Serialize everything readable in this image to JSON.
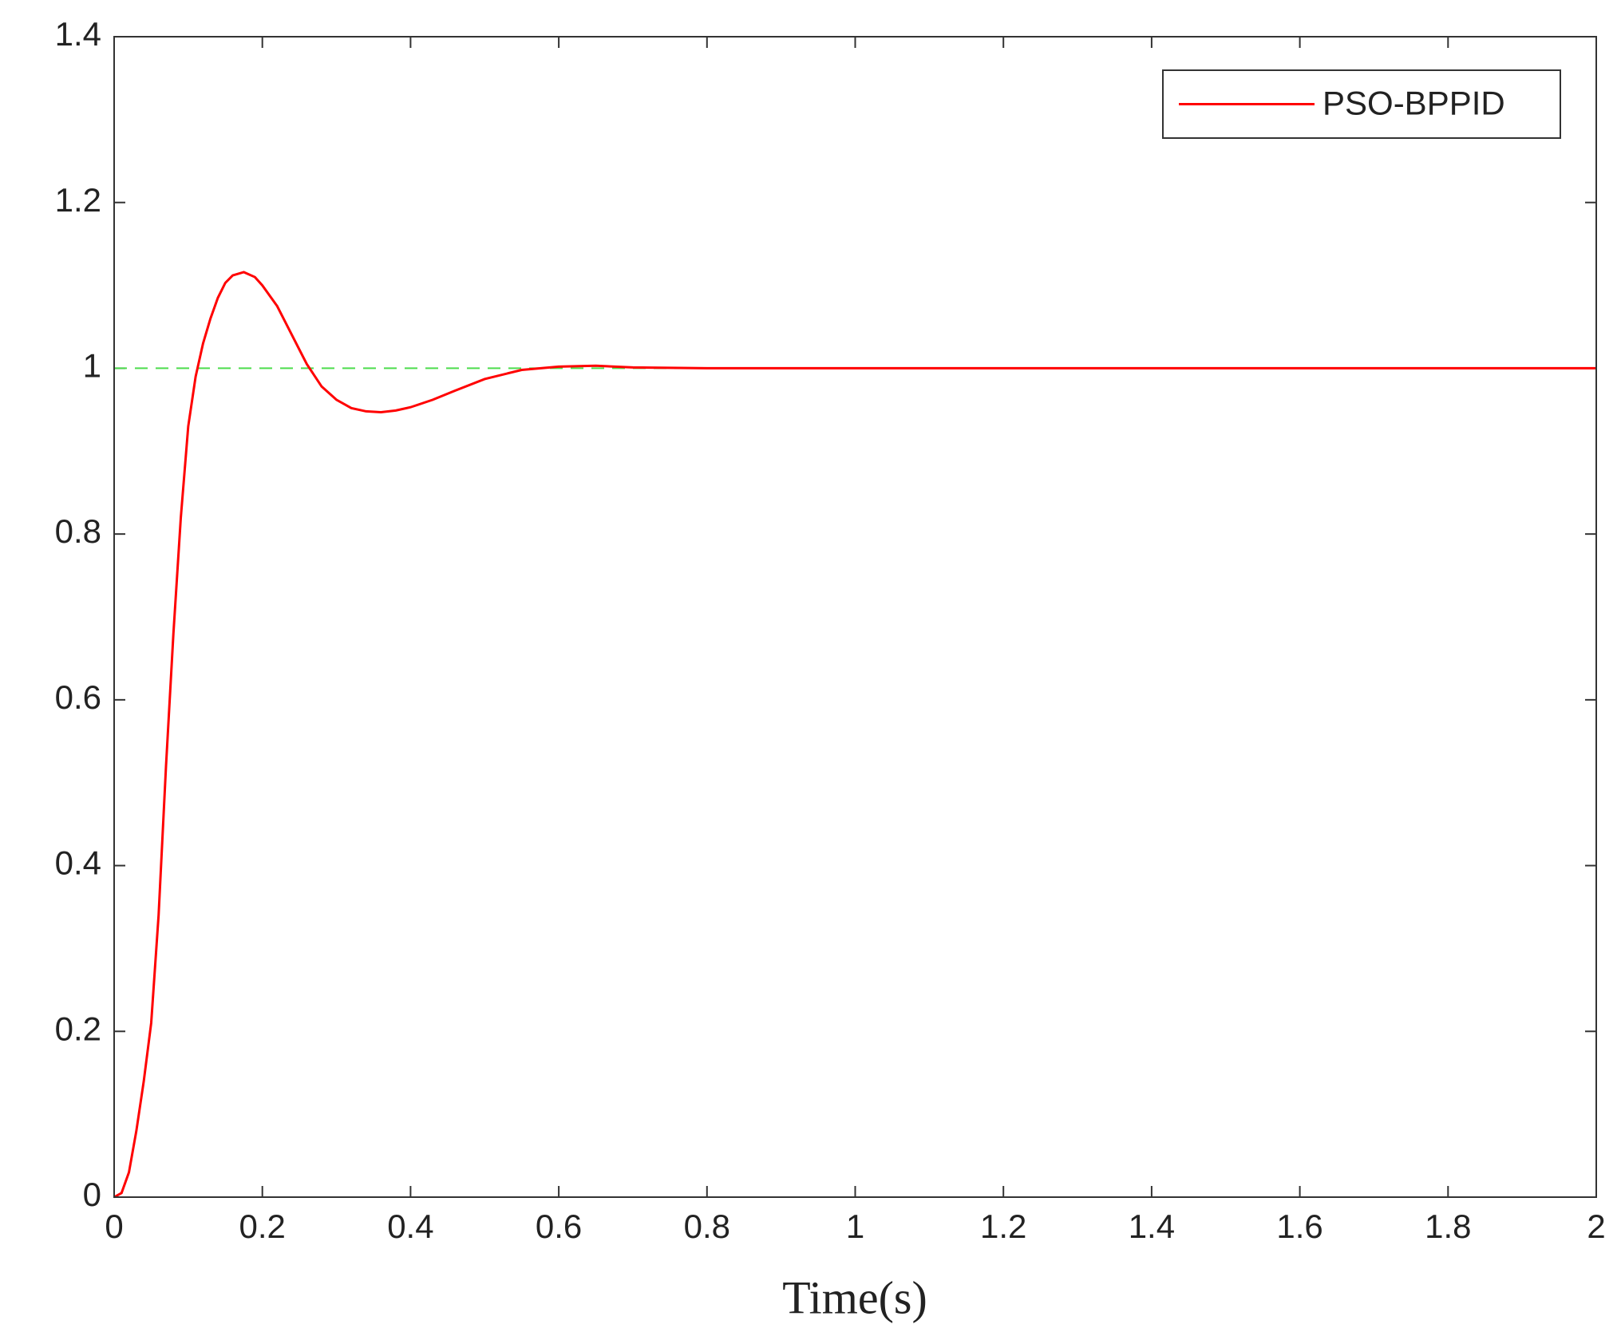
{
  "chart_data": {
    "type": "line",
    "x_label": "Time(s)",
    "x": [
      0,
      0.01,
      0.02,
      0.03,
      0.04,
      0.05,
      0.06,
      0.07,
      0.08,
      0.09,
      0.1,
      0.11,
      0.12,
      0.13,
      0.14,
      0.15,
      0.16,
      0.175,
      0.19,
      0.2,
      0.22,
      0.24,
      0.26,
      0.28,
      0.3,
      0.32,
      0.34,
      0.36,
      0.38,
      0.4,
      0.43,
      0.46,
      0.5,
      0.55,
      0.6,
      0.65,
      0.7,
      0.8,
      0.9,
      1,
      1.2,
      1.4,
      1.6,
      1.8,
      2
    ],
    "series": [
      {
        "name": "PSO-BPPID",
        "color": "#ff0000",
        "values": [
          0,
          0.005,
          0.03,
          0.08,
          0.14,
          0.21,
          0.34,
          0.52,
          0.68,
          0.82,
          0.93,
          0.99,
          1.03,
          1.06,
          1.085,
          1.103,
          1.112,
          1.116,
          1.11,
          1.1,
          1.075,
          1.04,
          1.005,
          0.978,
          0.962,
          0.952,
          0.948,
          0.947,
          0.949,
          0.953,
          0.962,
          0.973,
          0.987,
          0.998,
          1.002,
          1.003,
          1.001,
          1,
          1,
          1,
          1,
          1,
          1,
          1,
          1
        ]
      },
      {
        "color": "#4ddc4d",
        "dashed": true,
        "values": [
          1,
          1,
          1,
          1,
          1,
          1,
          1,
          1,
          1,
          1,
          1,
          1,
          1,
          1,
          1,
          1,
          1,
          1,
          1,
          1,
          1,
          1,
          1,
          1,
          1,
          1,
          1,
          1,
          1,
          1,
          1,
          1,
          1,
          1,
          1,
          1,
          1,
          1,
          1,
          1,
          1,
          1,
          1,
          1,
          1
        ]
      }
    ],
    "xlim": [
      0,
      2
    ],
    "xticks": [
      0,
      0.2,
      0.4,
      0.6,
      0.8,
      1,
      1.2,
      1.4,
      1.6,
      1.8,
      2
    ],
    "ylim": [
      0,
      1.4
    ],
    "yticks": [
      0,
      0.2,
      0.4,
      0.6,
      0.8,
      1,
      1.2,
      1.4
    ],
    "grid": false,
    "legend": "upper right"
  }
}
